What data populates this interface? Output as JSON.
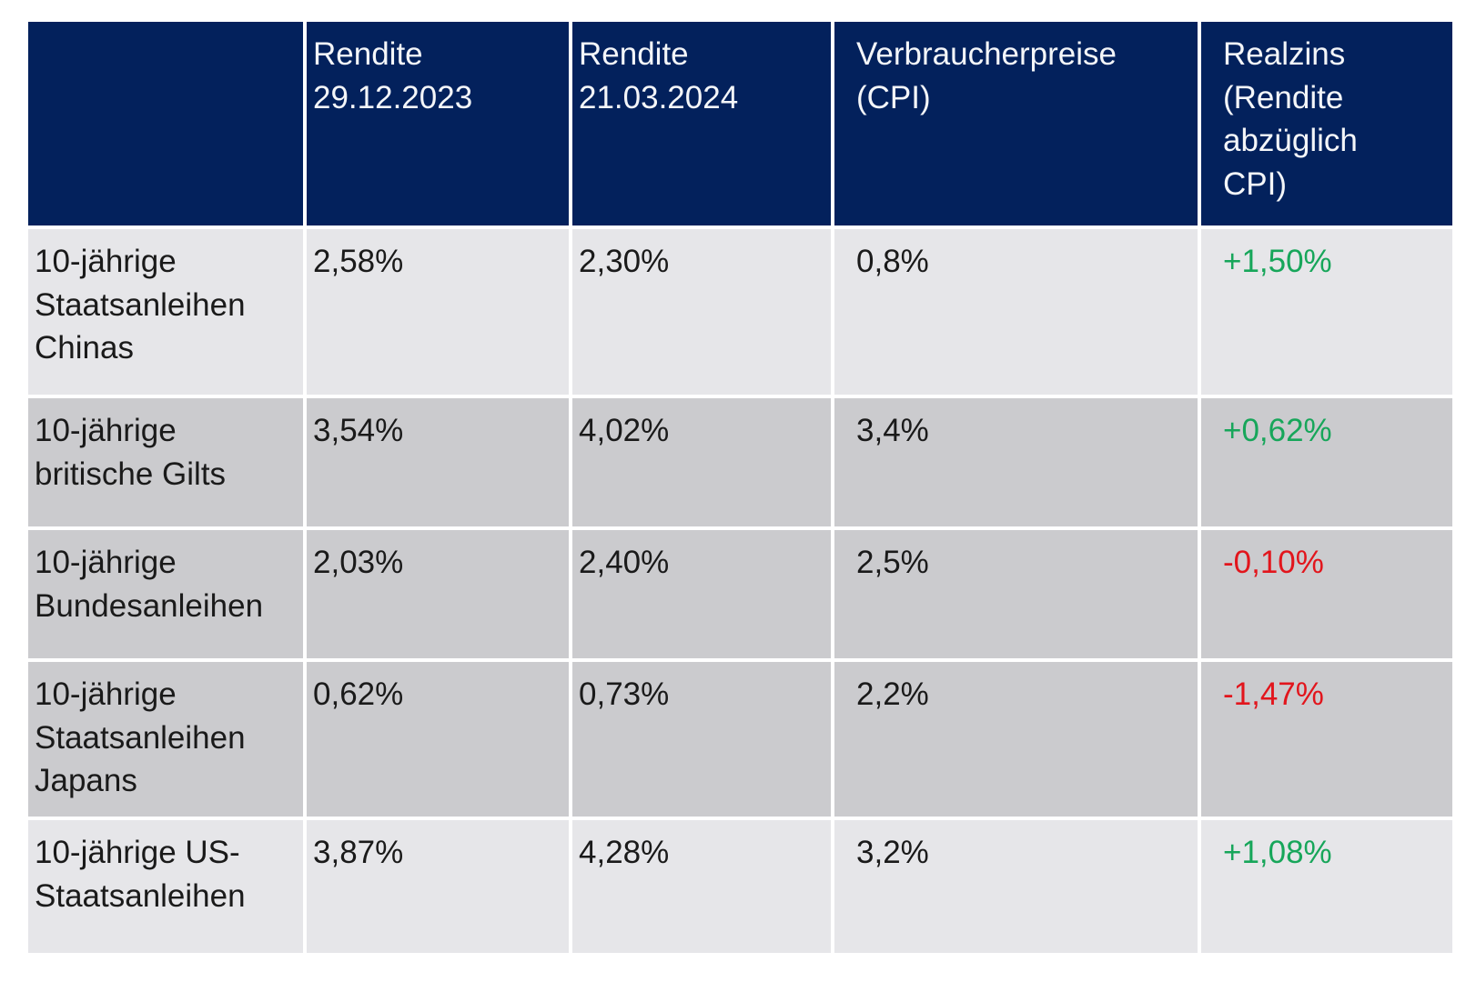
{
  "colors": {
    "header_bg": "#03215c",
    "header_text": "#f4f6f9",
    "row_light": "#e6e6e9",
    "row_dark": "#cbcbce",
    "text": "#1a1a1a",
    "positive": "#17a65a",
    "negative": "#e2151c",
    "page_bg": "#ffffff"
  },
  "table": {
    "header": {
      "col0": "",
      "col1": "Rendite\n29.12.2023",
      "col2": "Rendite\n21.03.2024",
      "col3": "Verbraucherpreise\n(CPI)",
      "col4": "Realzins\n(Rendite\nabzüglich\nCPI)"
    },
    "rows": [
      {
        "label": "10-jährige\nStaatsanleihen\nChinas",
        "rendite_2023": "2,58%",
        "rendite_2024": "2,30%",
        "cpi": "0,8%",
        "realzins": "+1,50%"
      },
      {
        "label": "10-jährige\nbritische Gilts",
        "rendite_2023": "3,54%",
        "rendite_2024": "4,02%",
        "cpi": "3,4%",
        "realzins": "+0,62%"
      },
      {
        "label": "10-jährige\nBundesanleihen",
        "rendite_2023": "2,03%",
        "rendite_2024": "2,40%",
        "cpi": "2,5%",
        "realzins": "-0,10%"
      },
      {
        "label": "10-jährige\nStaatsanleihen\nJapans",
        "rendite_2023": "0,62%",
        "rendite_2024": "0,73%",
        "cpi": "2,2%",
        "realzins": "-1,47%"
      },
      {
        "label": "10-jährige US-\nStaatsanleihen",
        "rendite_2023": "3,87%",
        "rendite_2024": "4,28%",
        "cpi": "3,2%",
        "realzins": "+1,08%"
      }
    ]
  },
  "chart_data": {
    "type": "table",
    "title": "",
    "columns": [
      "",
      "Rendite 29.12.2023",
      "Rendite 21.03.2024",
      "Verbraucherpreise (CPI)",
      "Realzins (Rendite abzüglich CPI)"
    ],
    "rows": [
      [
        "10-jährige Staatsanleihen Chinas",
        "2,58%",
        "2,30%",
        "0,8%",
        "+1,50%"
      ],
      [
        "10-jährige britische Gilts",
        "3,54%",
        "4,02%",
        "3,4%",
        "+0,62%"
      ],
      [
        "10-jährige Bundesanleihen",
        "2,03%",
        "2,40%",
        "2,5%",
        "-0,10%"
      ],
      [
        "10-jährige Staatsanleihen Japans",
        "0,62%",
        "0,73%",
        "2,2%",
        "-1,47%"
      ],
      [
        "10-jährige US-Staatsanleihen",
        "3,87%",
        "4,28%",
        "3,2%",
        "+1,08%"
      ]
    ],
    "realzins_numeric": [
      1.5,
      0.62,
      -0.1,
      -1.47,
      1.08
    ],
    "layout_hints": {
      "header_style": "dark-navy, white text",
      "positive_color": "#17a65a",
      "negative_color": "#e2151c",
      "row_shading": [
        "light",
        "dark",
        "dark",
        "dark",
        "light"
      ]
    }
  }
}
